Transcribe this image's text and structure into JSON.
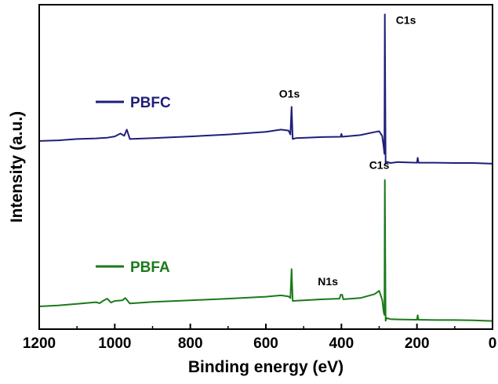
{
  "chart_data": {
    "type": "line",
    "xlabel": "Binding energy (eV)",
    "ylabel": "Intensity (a.u.)",
    "xlim": [
      1200,
      0
    ],
    "x_reversed": true,
    "ylim": [
      0,
      100
    ],
    "y_ticks_shown": false,
    "grid": false,
    "legend_placement": "inline-left",
    "x_ticks": [
      1200,
      1000,
      800,
      600,
      400,
      200,
      0
    ],
    "x_tick_labels": [
      "1200",
      "1000",
      "800",
      "600",
      "400",
      "200",
      "0"
    ],
    "series": [
      {
        "name": "PBFC",
        "color": "#1f1f7a",
        "points": [
          [
            1200,
            58
          ],
          [
            1150,
            58.2
          ],
          [
            1100,
            58.6
          ],
          [
            1050,
            58.8
          ],
          [
            1020,
            59.0
          ],
          [
            1000,
            59.4
          ],
          [
            985,
            60.3
          ],
          [
            975,
            59.6
          ],
          [
            968,
            61.5
          ],
          [
            960,
            58.6
          ],
          [
            900,
            58.9
          ],
          [
            800,
            59.4
          ],
          [
            700,
            60.0
          ],
          [
            600,
            60.8
          ],
          [
            560,
            61.5
          ],
          [
            540,
            61.2
          ],
          [
            535,
            60.0
          ],
          [
            532,
            68.5
          ],
          [
            529,
            58.6
          ],
          [
            520,
            58.9
          ],
          [
            450,
            59.2
          ],
          [
            402,
            59.3
          ],
          [
            400,
            60.2
          ],
          [
            398,
            59.3
          ],
          [
            350,
            59.8
          ],
          [
            310,
            60.8
          ],
          [
            300,
            61.0
          ],
          [
            292,
            59.5
          ],
          [
            288,
            56.0
          ],
          [
            286,
            54.0
          ],
          [
            285,
            97.0
          ],
          [
            283,
            51.0
          ],
          [
            280,
            51.6
          ],
          [
            270,
            51.2
          ],
          [
            250,
            51.5
          ],
          [
            200,
            51.3
          ],
          [
            198,
            52.8
          ],
          [
            196,
            51.3
          ],
          [
            150,
            51.3
          ],
          [
            100,
            51.2
          ],
          [
            50,
            51.2
          ],
          [
            0,
            51.0
          ]
        ]
      },
      {
        "name": "PBFA",
        "color": "#1a7a1a",
        "points": [
          [
            1200,
            7.0
          ],
          [
            1150,
            7.3
          ],
          [
            1100,
            7.8
          ],
          [
            1050,
            8.3
          ],
          [
            1040,
            8.0
          ],
          [
            1030,
            8.8
          ],
          [
            1020,
            9.4
          ],
          [
            1010,
            8.2
          ],
          [
            1000,
            8.7
          ],
          [
            980,
            8.9
          ],
          [
            972,
            9.6
          ],
          [
            960,
            7.9
          ],
          [
            900,
            8.4
          ],
          [
            800,
            8.9
          ],
          [
            700,
            9.4
          ],
          [
            600,
            10.0
          ],
          [
            560,
            10.4
          ],
          [
            540,
            10.1
          ],
          [
            535,
            9.6
          ],
          [
            532,
            18.5
          ],
          [
            529,
            8.7
          ],
          [
            500,
            8.9
          ],
          [
            450,
            9.2
          ],
          [
            405,
            9.4
          ],
          [
            402,
            10.6
          ],
          [
            398,
            10.6
          ],
          [
            395,
            9.2
          ],
          [
            350,
            9.6
          ],
          [
            312,
            10.8
          ],
          [
            300,
            11.8
          ],
          [
            292,
            9.0
          ],
          [
            288,
            5.2
          ],
          [
            286,
            4.4
          ],
          [
            285,
            46.0
          ],
          [
            283,
            2.6
          ],
          [
            280,
            3.4
          ],
          [
            270,
            3.1
          ],
          [
            250,
            3.0
          ],
          [
            200,
            2.9
          ],
          [
            198,
            4.3
          ],
          [
            196,
            2.9
          ],
          [
            150,
            2.8
          ],
          [
            100,
            2.8
          ],
          [
            50,
            2.7
          ],
          [
            0,
            2.5
          ]
        ]
      }
    ],
    "legend": [
      {
        "name": "PBFC",
        "color": "#1f1f7a"
      },
      {
        "name": "PBFA",
        "color": "#1a7a1a"
      }
    ],
    "annotations": [
      {
        "text": "C1s",
        "x": 285,
        "series": "PBFC"
      },
      {
        "text": "O1s",
        "x": 532,
        "series": "PBFC"
      },
      {
        "text": "C1s",
        "x": 285,
        "series": "PBFA"
      },
      {
        "text": "N1s",
        "x": 400,
        "series": "PBFA"
      }
    ]
  }
}
